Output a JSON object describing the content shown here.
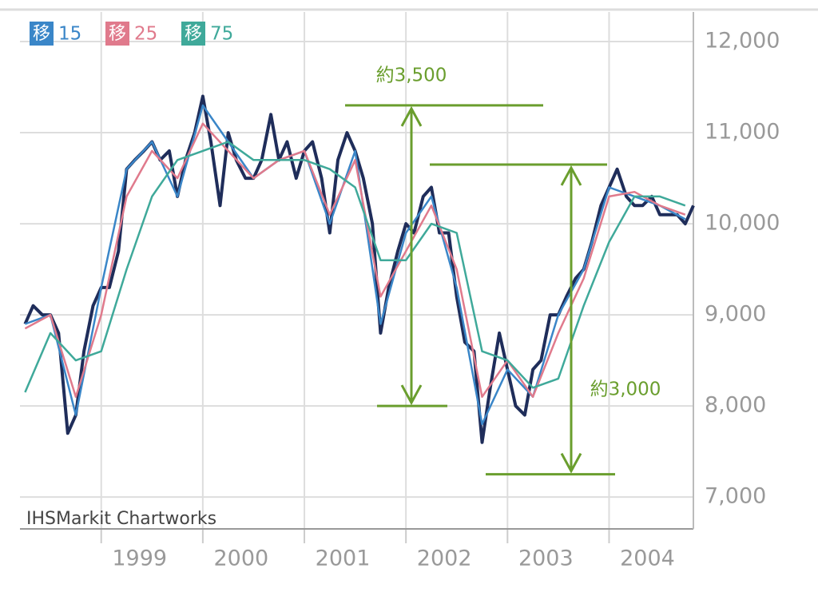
{
  "chart_data": {
    "type": "line",
    "credit": "IHSMarkit Chartworks",
    "xlim": [
      1998.2,
      2004.83
    ],
    "xticks": [
      1999,
      2000,
      2001,
      2002,
      2003,
      2004
    ],
    "ylim": [
      6650,
      12325
    ],
    "yticks": [
      {
        "value": 7000,
        "label": "7,000"
      },
      {
        "value": 8000,
        "label": "8,000"
      },
      {
        "value": 9000,
        "label": "9,000"
      },
      {
        "value": 10000,
        "label": "10,000"
      },
      {
        "value": 11000,
        "label": "11,000"
      },
      {
        "value": 12000,
        "label": "12,000"
      }
    ],
    "grid": true,
    "legend": "top-left",
    "series": [
      {
        "color": "#1f2d5a",
        "x": [
          1998.25,
          1998.33,
          1998.42,
          1998.5,
          1998.58,
          1998.67,
          1998.75,
          1998.83,
          1998.92,
          1999.0,
          1999.08,
          1999.17,
          1999.25,
          1999.33,
          1999.42,
          1999.5,
          1999.58,
          1999.67,
          1999.75,
          1999.83,
          1999.92,
          2000.0,
          2000.08,
          2000.17,
          2000.25,
          2000.33,
          2000.42,
          2000.5,
          2000.58,
          2000.67,
          2000.75,
          2000.83,
          2000.92,
          2001.0,
          2001.08,
          2001.17,
          2001.25,
          2001.33,
          2001.42,
          2001.5,
          2001.58,
          2001.67,
          2001.75,
          2001.83,
          2001.92,
          2002.0,
          2002.08,
          2002.17,
          2002.25,
          2002.33,
          2002.42,
          2002.5,
          2002.58,
          2002.67,
          2002.75,
          2002.83,
          2002.92,
          2003.0,
          2003.08,
          2003.17,
          2003.25,
          2003.33,
          2003.42,
          2003.5,
          2003.58,
          2003.67,
          2003.75,
          2003.83,
          2003.92,
          2004.0,
          2004.08,
          2004.17,
          2004.25,
          2004.33,
          2004.42,
          2004.5,
          2004.58,
          2004.67,
          2004.75,
          2004.83
        ],
        "values": [
          8900,
          9100,
          9000,
          9000,
          8800,
          7700,
          7900,
          8600,
          9100,
          9300,
          9300,
          9700,
          10600,
          10700,
          10800,
          10900,
          10700,
          10800,
          10300,
          10700,
          11000,
          11400,
          10900,
          10200,
          11000,
          10700,
          10500,
          10500,
          10700,
          11200,
          10700,
          10900,
          10500,
          10800,
          10900,
          10500,
          9900,
          10700,
          11000,
          10800,
          10500,
          10000,
          8800,
          9300,
          9700,
          10000,
          9900,
          10300,
          10400,
          9900,
          9900,
          9200,
          8700,
          8600,
          7600,
          8200,
          8800,
          8400,
          8000,
          7900,
          8400,
          8500,
          9000,
          9000,
          9200,
          9400,
          9500,
          9800,
          10200,
          10400,
          10600,
          10300,
          10200,
          10200,
          10300,
          10100,
          10100,
          10100,
          10000,
          10200
        ]
      },
      {
        "badge": "移",
        "name": "15",
        "color": "#3a86c8",
        "x": [
          1998.25,
          1998.5,
          1998.75,
          1999,
          1999.25,
          1999.5,
          1999.75,
          2000,
          2000.25,
          2000.5,
          2000.75,
          2001,
          2001.25,
          2001.5,
          2001.75,
          2002,
          2002.25,
          2002.5,
          2002.75,
          2003,
          2003.25,
          2003.5,
          2003.75,
          2004,
          2004.25,
          2004.5,
          2004.75
        ],
        "values": [
          8900,
          9000,
          7900,
          9300,
          10600,
          10900,
          10300,
          11300,
          10900,
          10500,
          10700,
          10800,
          10000,
          10800,
          8900,
          9900,
          10300,
          9300,
          7800,
          8400,
          8100,
          9000,
          9500,
          10400,
          10300,
          10200,
          10050
        ]
      },
      {
        "badge": "移",
        "name": "25",
        "color": "#e07a8c",
        "x": [
          1998.25,
          1998.5,
          1998.75,
          1999,
          1999.25,
          1999.5,
          1999.75,
          2000,
          2000.25,
          2000.5,
          2000.75,
          2001,
          2001.25,
          2001.5,
          2001.75,
          2002,
          2002.25,
          2002.5,
          2002.75,
          2003,
          2003.25,
          2003.5,
          2003.75,
          2004,
          2004.25,
          2004.5,
          2004.75
        ],
        "values": [
          8850,
          9000,
          8100,
          9000,
          10300,
          10800,
          10500,
          11100,
          10800,
          10500,
          10700,
          10800,
          10100,
          10700,
          9200,
          9700,
          10200,
          9500,
          8100,
          8500,
          8100,
          8800,
          9400,
          10300,
          10350,
          10200,
          10100
        ]
      },
      {
        "badge": "移",
        "name": "75",
        "color": "#3fa99a",
        "x": [
          1998.25,
          1998.5,
          1998.75,
          1999,
          1999.25,
          1999.5,
          1999.75,
          2000,
          2000.25,
          2000.5,
          2000.75,
          2001,
          2001.25,
          2001.5,
          2001.75,
          2002,
          2002.25,
          2002.5,
          2002.75,
          2003,
          2003.25,
          2003.5,
          2003.75,
          2004,
          2004.25,
          2004.5,
          2004.75
        ],
        "values": [
          8150,
          8800,
          8500,
          8600,
          9500,
          10300,
          10700,
          10800,
          10900,
          10700,
          10700,
          10700,
          10600,
          10400,
          9600,
          9600,
          10000,
          9900,
          8600,
          8500,
          8200,
          8300,
          9100,
          9800,
          10300,
          10300,
          10200
        ]
      }
    ],
    "annotations": [
      {
        "text": "約3,500",
        "y": [
          11300,
          8000
        ],
        "color": "#6a9e2e"
      },
      {
        "text": "約3,000",
        "y": [
          10650,
          7250
        ],
        "color": "#6a9e2e"
      }
    ]
  }
}
